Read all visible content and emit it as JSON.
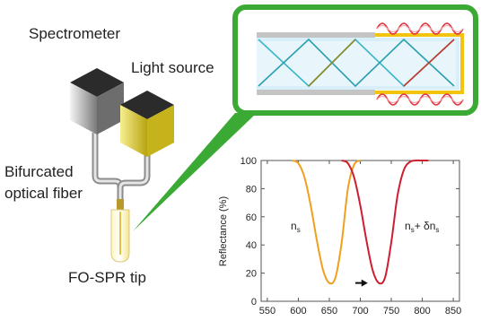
{
  "labels": {
    "spectrometer": "Spectrometer",
    "light_source": "Light source",
    "bifurcated_line1": "Bifurcated",
    "bifurcated_line2": "optical fiber",
    "tip": "FO-SPR tip"
  },
  "colors": {
    "callout_green": "#3aaa35",
    "spectrometer_dark": "#2b2b2b",
    "light_source_yellow": "#d8c81e",
    "gold_layer": "#f2c40f",
    "evanescent_wave": "#e0303a",
    "fiber_core": "#d8eef8",
    "curve_ns": "#f0a020",
    "curve_shifted": "#cc1f2f"
  },
  "chart_data": {
    "type": "line",
    "title": "",
    "xlabel": "",
    "ylabel": "Reflectance (%)",
    "xlim": [
      540,
      860
    ],
    "ylim": [
      0,
      100
    ],
    "x_ticks": [
      550,
      600,
      650,
      700,
      750,
      800,
      850
    ],
    "y_ticks": [
      0,
      20,
      40,
      60,
      80,
      100
    ],
    "series": [
      {
        "name": "n_s",
        "color": "#f0a020",
        "x": [
          590,
          600,
          610,
          620,
          630,
          640,
          650,
          660,
          670,
          680,
          690,
          700
        ],
        "y": [
          100,
          98,
          88,
          68,
          43,
          22,
          13,
          17,
          42,
          80,
          97,
          100
        ]
      },
      {
        "name": "n_s+ δn_s",
        "color": "#cc1f2f",
        "x": [
          670,
          680,
          690,
          700,
          710,
          720,
          730,
          740,
          750,
          760,
          770,
          780,
          790,
          800,
          810
        ],
        "y": [
          100,
          98,
          88,
          68,
          43,
          22,
          13,
          17,
          42,
          75,
          93,
          99,
          100,
          100,
          100
        ]
      }
    ],
    "annotations": [
      {
        "text_main": "n",
        "text_sub": "s"
      },
      {
        "text_main": "n",
        "text_sub": "s",
        "text_mid": "+ δn",
        "text_sub2": "s"
      }
    ],
    "shift_arrow": {
      "from_x": 692,
      "to_x": 712,
      "y": 13
    }
  }
}
